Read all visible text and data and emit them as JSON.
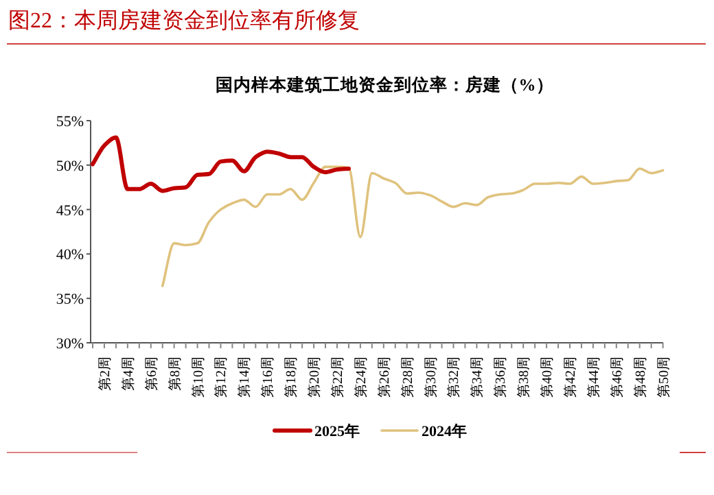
{
  "chart_data": {
    "type": "line",
    "title": "图22：本周房建资金到位率有所修复",
    "subtitle": "国内样本建筑工地资金到位率：房建（%）",
    "categories": [
      null,
      "第2周",
      null,
      "第4周",
      null,
      "第6周",
      null,
      "第8周",
      null,
      "第10周",
      null,
      "第12周",
      null,
      "第14周",
      null,
      "第16周",
      null,
      "第18周",
      null,
      "第20周",
      null,
      "第22周",
      null,
      "第24周",
      null,
      "第26周",
      null,
      "第28周",
      null,
      "第30周",
      null,
      "第32周",
      null,
      "第34周",
      null,
      "第36周",
      null,
      "第38周",
      null,
      "第40周",
      null,
      "第42周",
      null,
      "第44周",
      null,
      "第46周",
      null,
      "第48周",
      null,
      "第50周"
    ],
    "series": [
      {
        "name": "2025年",
        "color": "#c00000",
        "values": [
          50.1,
          52.2,
          53.1,
          47.3,
          47.3,
          47.9,
          47.1,
          47.4,
          47.5,
          48.9,
          49.0,
          50.4,
          50.5,
          49.3,
          50.9,
          51.5,
          51.3,
          50.9,
          50.9,
          49.8,
          49.2,
          49.5,
          49.6,
          null,
          null,
          null,
          null,
          null,
          null,
          null,
          null,
          null,
          null,
          null,
          null,
          null,
          null,
          null,
          null,
          null,
          null,
          null,
          null,
          null,
          null,
          null,
          null,
          null,
          null,
          null
        ]
      },
      {
        "name": "2024年",
        "color": "#dfc27d",
        "values": [
          null,
          null,
          null,
          null,
          null,
          null,
          36.4,
          41.2,
          41.0,
          41.2,
          43.6,
          45.0,
          45.7,
          46.1,
          45.3,
          46.7,
          46.7,
          47.3,
          46.1,
          48.0,
          49.8,
          49.8,
          49.7,
          41.9,
          49.1,
          48.5,
          48.0,
          46.8,
          46.9,
          46.6,
          45.9,
          45.3,
          45.7,
          45.5,
          46.4,
          46.7,
          46.8,
          47.2,
          47.9,
          47.9,
          48.0,
          47.9,
          48.7,
          47.9,
          48.0,
          48.2,
          48.3,
          49.6,
          49.1,
          49.4
        ]
      }
    ],
    "ylim": [
      30,
      55
    ],
    "yticks": [
      {
        "value": 30,
        "label": "30%"
      },
      {
        "value": 35,
        "label": "35%"
      },
      {
        "value": 40,
        "label": "40%"
      },
      {
        "value": 45,
        "label": "45%"
      },
      {
        "value": 50,
        "label": "50%"
      },
      {
        "value": 55,
        "label": "55%"
      }
    ],
    "grid": false,
    "legend": "bottom",
    "marker": "none",
    "line_style": "solid"
  }
}
